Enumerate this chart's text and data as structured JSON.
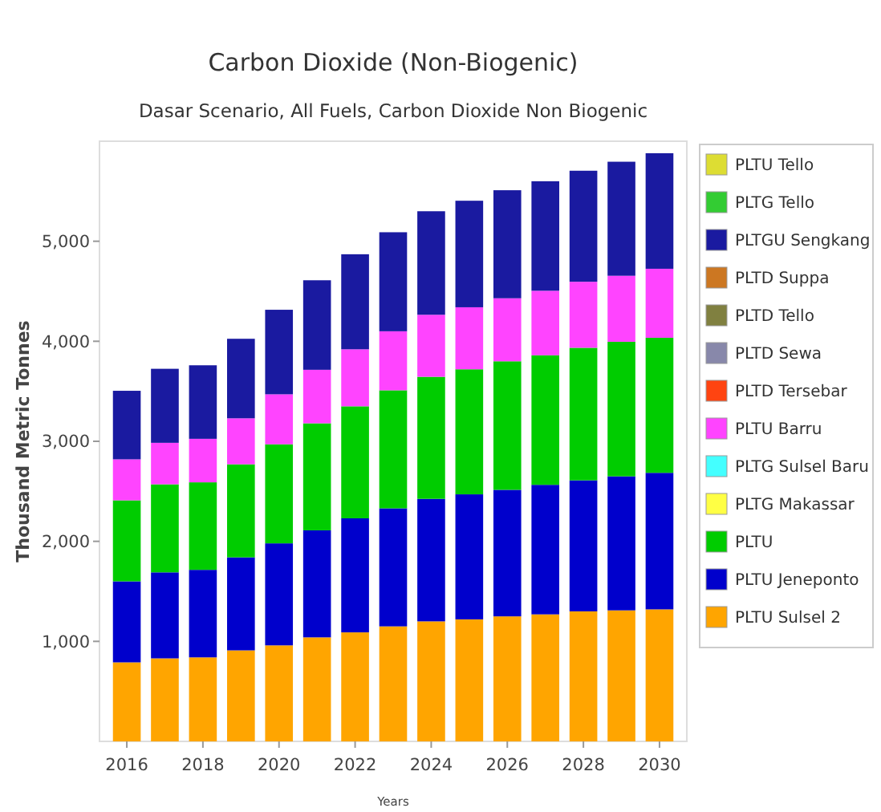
{
  "chart_data": {
    "type": "bar",
    "stacked": true,
    "title": "Carbon Dioxide (Non-Biogenic)",
    "subtitle": "Dasar Scenario, All Fuels, Carbon Dioxide Non Biogenic",
    "xlabel": "Years",
    "ylabel": "Thousand Metric Tonnes",
    "categories": [
      "2016",
      null,
      "2018",
      null,
      "2020",
      null,
      "2022",
      null,
      "2024",
      null,
      "2026",
      null,
      "2028",
      null,
      "2030"
    ],
    "ylim": [
      0,
      6000
    ],
    "yticks": [
      {
        "value": 1000,
        "label": "1,000"
      },
      {
        "value": 2000,
        "label": "2,000"
      },
      {
        "value": 3000,
        "label": "3,000"
      },
      {
        "value": 4000,
        "label": "4,000"
      },
      {
        "value": 5000,
        "label": "5,000"
      }
    ],
    "grid": false,
    "legend": "right",
    "series": [
      {
        "name": "PLTU Sulsel 2",
        "color": "#ffa500",
        "values": [
          790,
          830,
          840,
          910,
          960,
          1040,
          1090,
          1150,
          1200,
          1220,
          1250,
          1270,
          1300,
          1310,
          1320
        ]
      },
      {
        "name": "PLTU Jeneponto",
        "color": "#0000cc",
        "values": [
          810,
          860,
          875,
          930,
          1020,
          1070,
          1140,
          1180,
          1225,
          1250,
          1265,
          1295,
          1310,
          1340,
          1365
        ]
      },
      {
        "name": "PLTU",
        "color": "#00cc00",
        "values": [
          810,
          880,
          875,
          930,
          990,
          1070,
          1120,
          1180,
          1220,
          1250,
          1285,
          1295,
          1325,
          1345,
          1350
        ]
      },
      {
        "name": "PLTG Makassar",
        "color": "#ffff44",
        "values": [
          0,
          0,
          0,
          0,
          0,
          0,
          0,
          0,
          0,
          0,
          0,
          0,
          0,
          0,
          0
        ]
      },
      {
        "name": "PLTG Sulsel Baru",
        "color": "#44ffff",
        "values": [
          0,
          0,
          0,
          0,
          0,
          0,
          0,
          0,
          0,
          0,
          0,
          0,
          0,
          0,
          0
        ]
      },
      {
        "name": "PLTU Barru",
        "color": "#ff44ff",
        "values": [
          410,
          415,
          435,
          460,
          500,
          535,
          570,
          590,
          620,
          620,
          630,
          645,
          660,
          660,
          690
        ]
      },
      {
        "name": "PLTD Tersebar",
        "color": "#ff4411",
        "values": [
          0,
          0,
          0,
          0,
          0,
          0,
          0,
          0,
          0,
          0,
          0,
          0,
          0,
          0,
          0
        ]
      },
      {
        "name": "PLTD Sewa",
        "color": "#8888aa",
        "values": [
          0,
          0,
          0,
          0,
          0,
          0,
          0,
          0,
          0,
          0,
          0,
          0,
          0,
          0,
          0
        ]
      },
      {
        "name": "PLTD Tello",
        "color": "#808040",
        "values": [
          0,
          0,
          0,
          0,
          0,
          0,
          0,
          0,
          0,
          0,
          0,
          0,
          0,
          0,
          0
        ]
      },
      {
        "name": "PLTD Suppa",
        "color": "#cc7722",
        "values": [
          0,
          0,
          0,
          0,
          0,
          0,
          0,
          0,
          0,
          0,
          0,
          0,
          0,
          0,
          0
        ]
      },
      {
        "name": "PLTGU Sengkang",
        "color": "#1a1aa0",
        "values": [
          685,
          740,
          735,
          795,
          845,
          895,
          950,
          990,
          1035,
          1065,
          1080,
          1095,
          1110,
          1140,
          1155
        ]
      },
      {
        "name": "PLTG Tello",
        "color": "#33cc33",
        "values": [
          0,
          0,
          0,
          0,
          0,
          0,
          0,
          0,
          0,
          0,
          0,
          0,
          0,
          0,
          0
        ]
      },
      {
        "name": "PLTU Tello",
        "color": "#dddd33",
        "values": [
          0,
          0,
          0,
          0,
          0,
          0,
          0,
          0,
          0,
          0,
          0,
          0,
          0,
          0,
          0
        ]
      }
    ]
  }
}
